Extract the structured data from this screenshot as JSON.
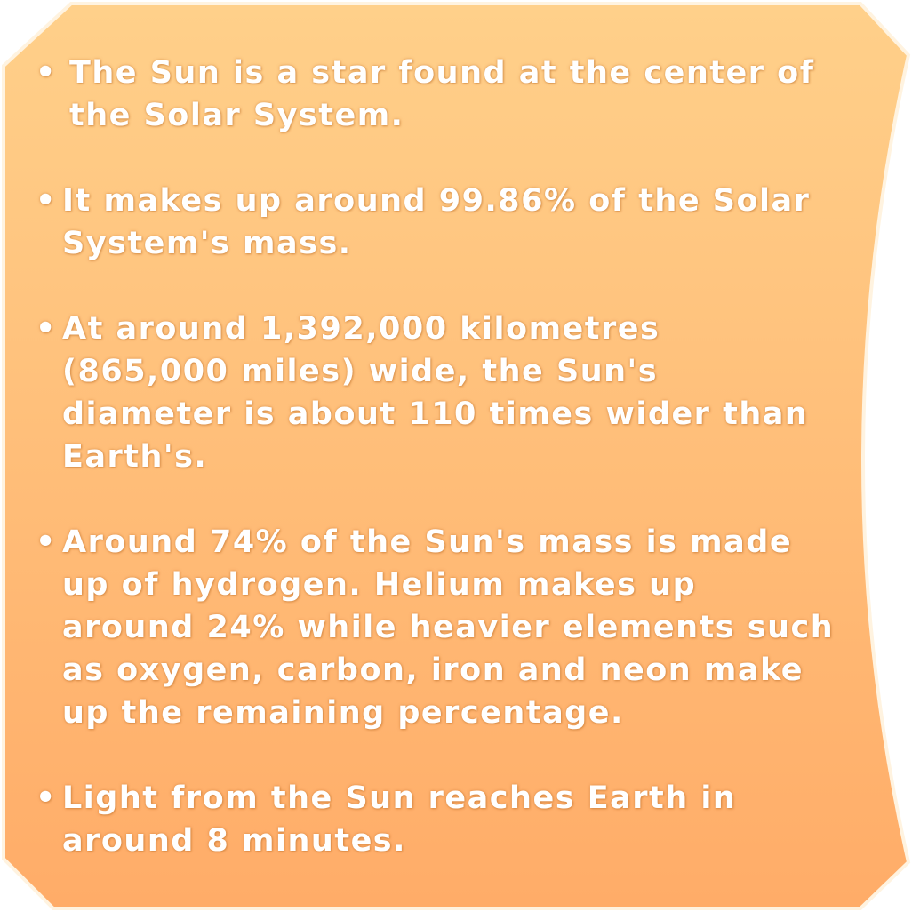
{
  "card": {
    "gradient_top": "#ffd08a",
    "gradient_bottom": "#ffac68",
    "border": "#fff3e0"
  },
  "bullet_symbol": "•",
  "facts": [
    "The Sun is a star found at the center of the Solar System.",
    "It makes up around 99.86% of the Solar System's mass.",
    "At around 1,392,000 kilometres (865,000 miles) wide, the Sun's diameter is about 110 times wider than Earth's.",
    "Around 74% of the Sun's mass is made up of hydrogen. Helium makes up around 24% while heavier elements such as oxygen, carbon, iron and neon make up the remaining percentage.",
    "Light from the Sun reaches Earth in around 8 minutes."
  ]
}
